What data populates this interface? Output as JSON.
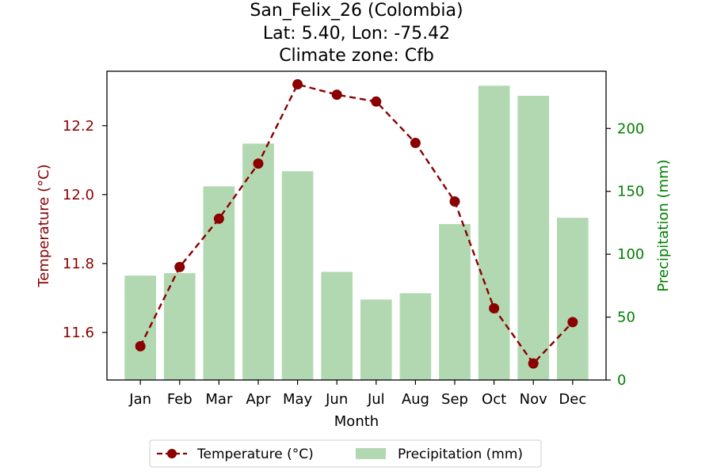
{
  "chart_data": {
    "type": "bar",
    "title_lines": [
      "San_Felix_26 (Colombia)",
      "Lat: 5.40, Lon: -75.42",
      "Climate zone: Cfb"
    ],
    "xlabel": "Month",
    "categories": [
      "Jan",
      "Feb",
      "Mar",
      "Apr",
      "May",
      "Jun",
      "Jul",
      "Aug",
      "Sep",
      "Oct",
      "Nov",
      "Dec"
    ],
    "series": [
      {
        "name": "Temperature (°C)",
        "type": "line",
        "axis": "left",
        "color": "#8b0000",
        "style": "dashed",
        "marker": "circle",
        "values": [
          11.56,
          11.79,
          11.93,
          12.09,
          12.32,
          12.29,
          12.27,
          12.15,
          11.98,
          11.67,
          11.51,
          11.63
        ]
      },
      {
        "name": "Precipitation (mm)",
        "type": "bar",
        "axis": "right",
        "color": "#b2d8b2",
        "values": [
          83,
          85,
          154,
          188,
          166,
          86,
          64,
          69,
          124,
          234,
          226,
          129
        ]
      }
    ],
    "y_left": {
      "label": "Temperature (°C)",
      "color": "#8b0000",
      "ticks": [
        11.6,
        11.8,
        12.0,
        12.2
      ],
      "tick_labels": [
        "11.6",
        "11.8",
        "12.0",
        "12.2"
      ],
      "ylim": [
        11.462,
        12.358
      ]
    },
    "y_right": {
      "label": "Precipitation (mm)",
      "color": "#008000",
      "ticks": [
        0,
        50,
        100,
        150,
        200
      ],
      "tick_labels": [
        "0",
        "50",
        "100",
        "150",
        "200"
      ],
      "ylim": [
        0,
        245.5
      ]
    },
    "grid": false,
    "legend_position": "bottom-center"
  }
}
